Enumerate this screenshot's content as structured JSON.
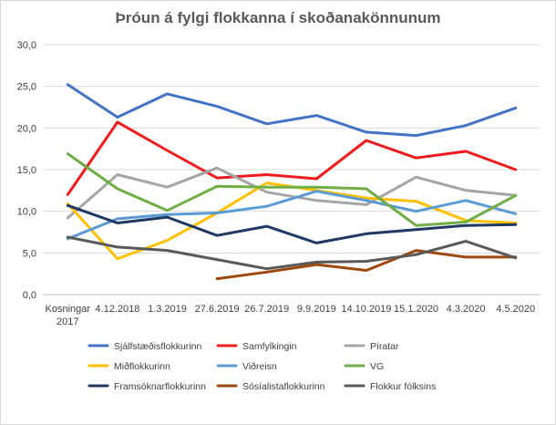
{
  "chart_data": {
    "type": "line",
    "title": "Þróun á fylgi flokkanna í skoðanakönnunum",
    "xlabel": "",
    "ylabel": "",
    "ylim": [
      0,
      30
    ],
    "y_ticks": [
      "0,0",
      "5,0",
      "10,0",
      "15,0",
      "20,0",
      "25,0",
      "30,0"
    ],
    "grid": "horizontal",
    "legend_position": "bottom",
    "categories": [
      [
        "Kosningar",
        "2017"
      ],
      [
        "4.12.2018"
      ],
      [
        "1.3.2019"
      ],
      [
        "27.6.2019"
      ],
      [
        "26.7.2019"
      ],
      [
        "9.9.2019"
      ],
      [
        "14.10.2019"
      ],
      [
        "15.1.2020"
      ],
      [
        "4.3.2020"
      ],
      [
        "4.5.2020"
      ]
    ],
    "series": [
      {
        "name": "Sjálfstæðisflokkurinn",
        "color": "#4472c4",
        "values": [
          25.2,
          21.3,
          24.1,
          22.6,
          20.5,
          21.5,
          19.5,
          19.1,
          20.3,
          22.4
        ]
      },
      {
        "name": "Samfylkingin",
        "color": "#ee1c1c",
        "values": [
          12.0,
          20.7,
          17.3,
          14.0,
          14.4,
          13.9,
          18.5,
          16.4,
          17.2,
          15.0
        ]
      },
      {
        "name": "Píratar",
        "color": "#a5a5a5",
        "values": [
          9.2,
          14.4,
          12.9,
          15.2,
          12.3,
          11.3,
          10.8,
          14.1,
          12.5,
          11.9
        ]
      },
      {
        "name": "Miðflokkurinn",
        "color": "#ffc000",
        "values": [
          10.9,
          4.3,
          6.5,
          9.8,
          13.4,
          12.5,
          11.6,
          11.2,
          8.9,
          8.6
        ]
      },
      {
        "name": "Viðreisn",
        "color": "#5b9bd5",
        "values": [
          6.7,
          9.1,
          9.6,
          9.8,
          10.6,
          12.4,
          11.3,
          10.0,
          11.3,
          9.7
        ]
      },
      {
        "name": "VG",
        "color": "#70ad47",
        "values": [
          16.9,
          12.7,
          10.1,
          13.0,
          12.9,
          12.9,
          12.7,
          8.3,
          8.7,
          11.9
        ]
      },
      {
        "name": "Framsóknarflokkurinn",
        "color": "#203864",
        "values": [
          10.7,
          8.6,
          9.3,
          7.1,
          8.2,
          6.2,
          7.3,
          7.8,
          8.3,
          8.4
        ]
      },
      {
        "name": "Sósíalistaflokkurinn",
        "color": "#9e480e",
        "values": [
          null,
          null,
          null,
          1.9,
          2.7,
          3.6,
          2.9,
          5.3,
          4.5,
          4.5
        ]
      },
      {
        "name": "Flokkur fólksins",
        "color": "#595959",
        "values": [
          6.9,
          5.7,
          5.3,
          4.2,
          3.1,
          3.9,
          4.0,
          4.8,
          6.4,
          4.4
        ]
      }
    ]
  }
}
